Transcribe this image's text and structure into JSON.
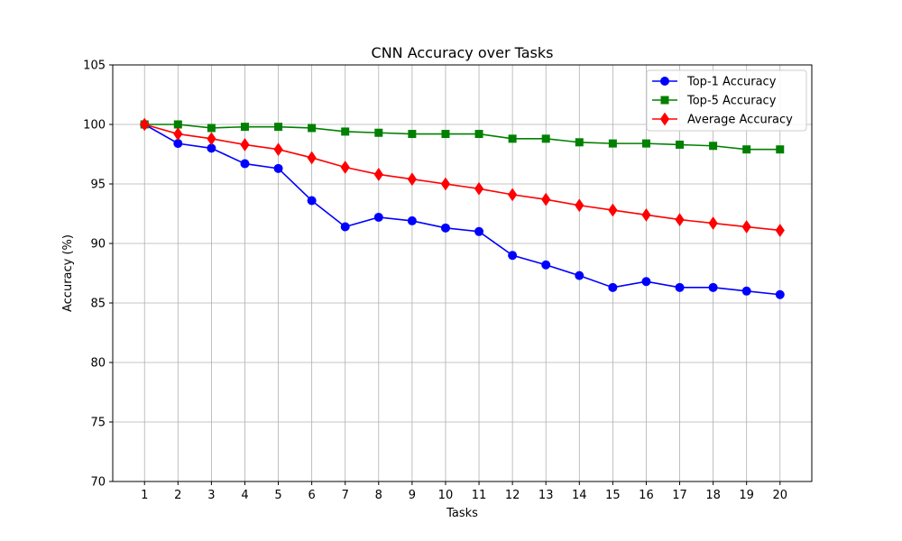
{
  "chart_data": {
    "type": "line",
    "title": "CNN Accuracy over Tasks",
    "xlabel": "Tasks",
    "ylabel": "Accuracy (%)",
    "ylim": [
      70,
      105
    ],
    "yticks": [
      70,
      75,
      80,
      85,
      90,
      95,
      100,
      105
    ],
    "x": [
      1,
      2,
      3,
      4,
      5,
      6,
      7,
      8,
      9,
      10,
      11,
      12,
      13,
      14,
      15,
      16,
      17,
      18,
      19,
      20
    ],
    "grid": true,
    "legend_position": "top-right",
    "series": [
      {
        "name": "Top-1 Accuracy",
        "color": "#0000ff",
        "marker": "circle",
        "values": [
          100.0,
          98.4,
          98.0,
          96.7,
          96.3,
          93.6,
          91.4,
          92.2,
          91.9,
          91.3,
          91.0,
          89.0,
          88.2,
          87.3,
          86.3,
          86.8,
          86.3,
          86.3,
          86.0,
          85.7
        ]
      },
      {
        "name": "Top-5 Accuracy",
        "color": "#008000",
        "marker": "square",
        "values": [
          100.0,
          100.0,
          99.7,
          99.8,
          99.8,
          99.7,
          99.4,
          99.3,
          99.2,
          99.2,
          99.2,
          98.8,
          98.8,
          98.5,
          98.4,
          98.4,
          98.3,
          98.2,
          97.9,
          97.9
        ]
      },
      {
        "name": "Average Accuracy",
        "color": "#ff0000",
        "marker": "diamond",
        "values": [
          100.0,
          99.2,
          98.8,
          98.3,
          97.9,
          97.2,
          96.4,
          95.8,
          95.4,
          95.0,
          94.6,
          94.1,
          93.7,
          93.2,
          92.8,
          92.4,
          92.0,
          91.7,
          91.4,
          91.1
        ]
      }
    ]
  }
}
